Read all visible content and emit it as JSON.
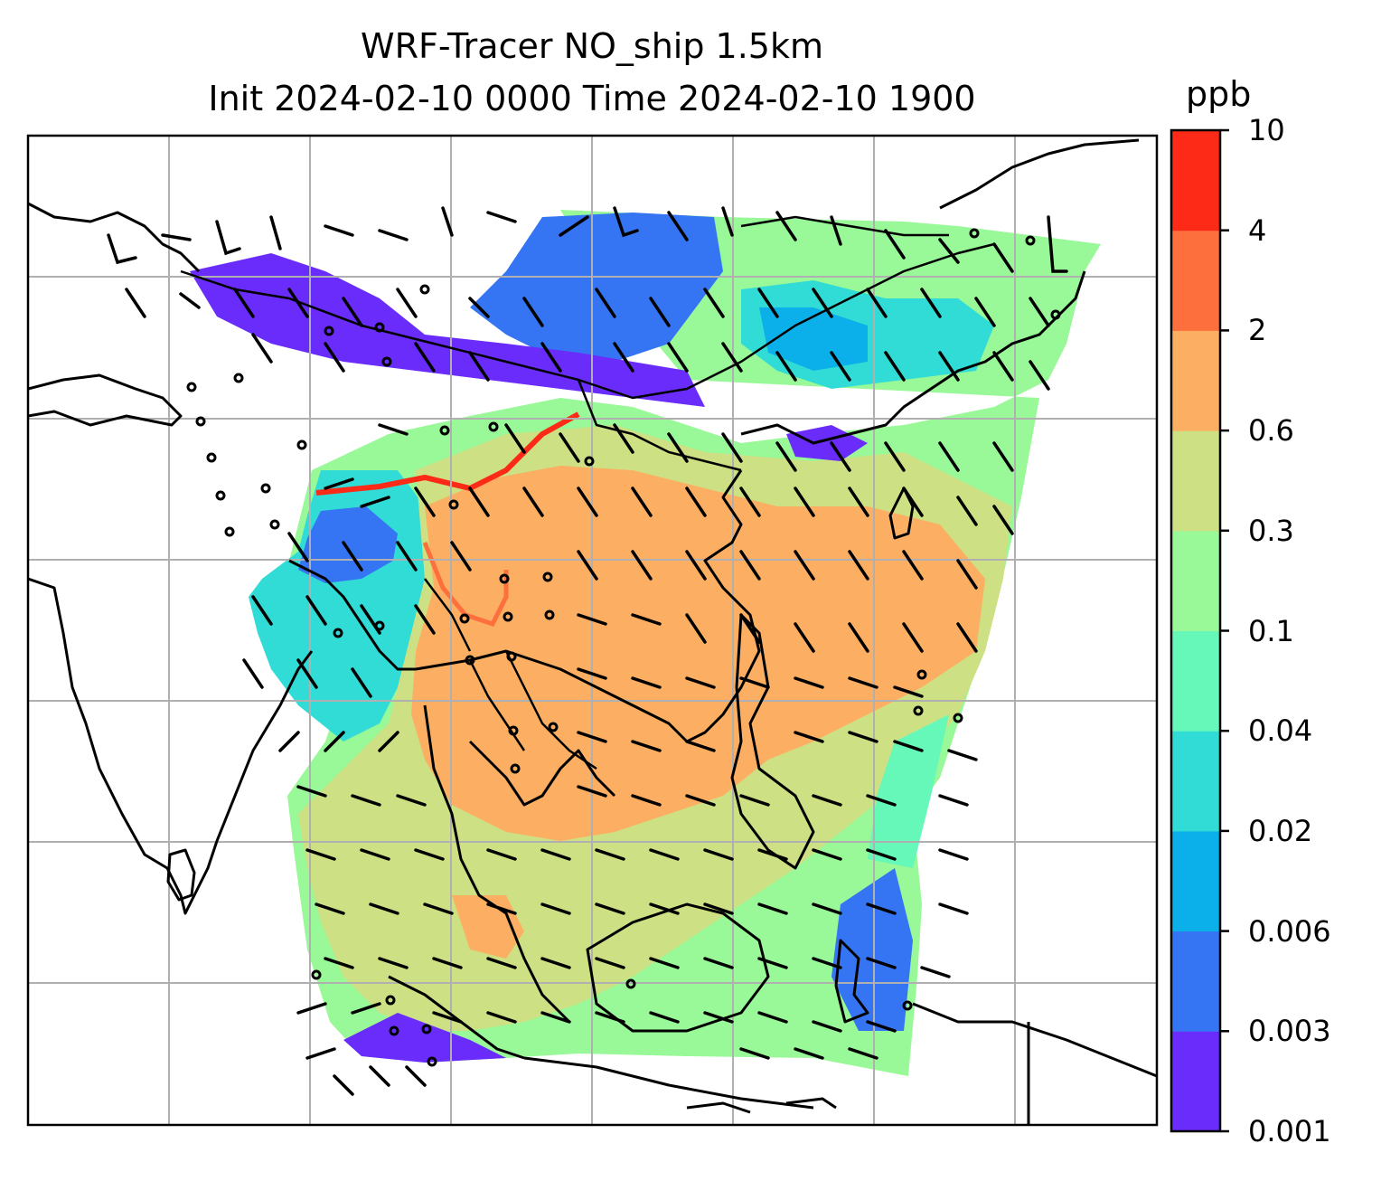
{
  "map": {
    "title_line1": "WRF-Tracer NO_ship 1.5km",
    "title_line2": "Init 2024-02-10 0000 Time 2024-02-10 1900",
    "variable": "NO_ship",
    "level": "1.5km",
    "init_time": "2024-02-10 0000",
    "valid_time": "2024-02-10 1900",
    "overlays": [
      "wind-barbs",
      "coastlines",
      "country-borders",
      "gridlines"
    ],
    "region": "Southeast Asia / South China Sea"
  },
  "colorbar": {
    "unit": "ppb",
    "levels": [
      "0.001",
      "0.003",
      "0.006",
      "0.02",
      "0.04",
      "0.1",
      "0.3",
      "0.6",
      "2",
      "4",
      "10"
    ],
    "colors": [
      "#6a2cfa",
      "#3574f2",
      "#0bb0ea",
      "#31dcd6",
      "#66f8b8",
      "#99f897",
      "#cde083",
      "#fcaf62",
      "#fd703e",
      "#fc2a17"
    ]
  }
}
